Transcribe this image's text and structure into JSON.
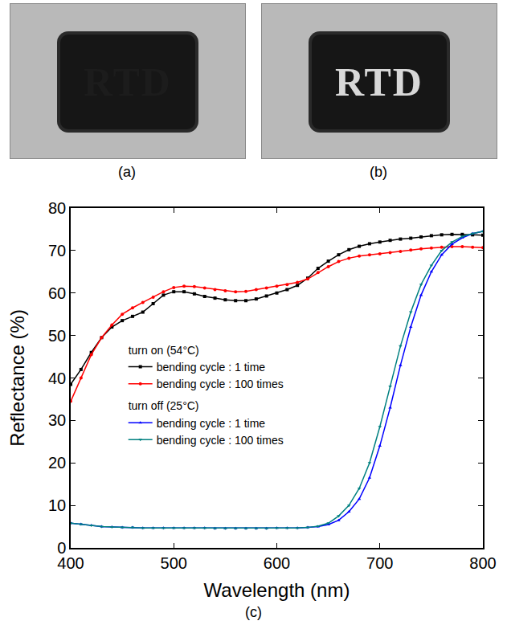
{
  "photos": [
    {
      "label": "(a)",
      "text": "RTD",
      "color": "#1c1c1c"
    },
    {
      "label": "(b)",
      "text": "RTD",
      "color": "#d8d8d8"
    }
  ],
  "chart_label": "(c)",
  "chart_data": {
    "type": "line",
    "x_title": "Wavelength (nm)",
    "y_title": "Reflectance (%)",
    "x": [
      400,
      410,
      420,
      430,
      440,
      450,
      460,
      470,
      480,
      490,
      500,
      510,
      520,
      530,
      540,
      550,
      560,
      570,
      580,
      590,
      600,
      610,
      620,
      630,
      640,
      650,
      660,
      670,
      680,
      690,
      700,
      710,
      720,
      730,
      740,
      750,
      760,
      770,
      780,
      790,
      800
    ],
    "xlim": [
      400,
      800
    ],
    "xticks": [
      400,
      500,
      600,
      700,
      800
    ],
    "ylim": [
      0,
      80
    ],
    "yticks": [
      0,
      10,
      20,
      30,
      40,
      50,
      60,
      70,
      80
    ],
    "grid": false,
    "legend": "left",
    "series": [
      {
        "group": "turn on (54°C)",
        "name": "bending cycle : 1 time",
        "color": "#000000",
        "marker": "square",
        "values": [
          38.5,
          42,
          46,
          49.5,
          52,
          53.5,
          54.5,
          55.5,
          57.5,
          59.5,
          60.3,
          60.3,
          59.8,
          59.2,
          58.8,
          58.4,
          58.2,
          58.2,
          58.6,
          59.3,
          60,
          60.8,
          61.8,
          63.5,
          65.8,
          67.5,
          69,
          70.2,
          71,
          71.6,
          72,
          72.4,
          72.7,
          72.9,
          73.2,
          73.5,
          73.7,
          73.8,
          73.8,
          73.7,
          73.6
        ]
      },
      {
        "group": "turn on (54°C)",
        "name": "bending cycle : 100 times",
        "color": "#ff0000",
        "marker": "circle",
        "values": [
          34.5,
          40,
          45.5,
          49.5,
          52.5,
          55,
          56.5,
          57.8,
          59,
          60.3,
          61.3,
          61.6,
          61.5,
          61.2,
          60.8,
          60.5,
          60.3,
          60.4,
          60.8,
          61.2,
          61.6,
          62,
          62.5,
          63.3,
          64.8,
          66.2,
          67.4,
          68.2,
          68.7,
          69,
          69.2,
          69.5,
          69.8,
          70.1,
          70.4,
          70.6,
          70.8,
          70.9,
          70.9,
          70.8,
          70.7
        ]
      },
      {
        "group": "turn off (25°C)",
        "name": "bending cycle : 1 time",
        "color": "#0000ff",
        "marker": "triangle-up",
        "values": [
          5.8,
          5.6,
          5.3,
          5,
          4.9,
          4.8,
          4.8,
          4.7,
          4.7,
          4.7,
          4.7,
          4.7,
          4.7,
          4.7,
          4.6,
          4.6,
          4.6,
          4.6,
          4.6,
          4.6,
          4.7,
          4.7,
          4.7,
          4.8,
          5,
          5.5,
          6.5,
          8.5,
          11.5,
          16.5,
          24,
          33,
          43,
          52,
          59.5,
          65,
          69,
          71.5,
          73,
          74,
          74.5
        ]
      },
      {
        "group": "turn off (25°C)",
        "name": "bending cycle : 100 times",
        "color": "#008080",
        "marker": "triangle-down",
        "values": [
          5.8,
          5.6,
          5.3,
          5,
          4.9,
          4.8,
          4.8,
          4.7,
          4.7,
          4.7,
          4.7,
          4.7,
          4.7,
          4.7,
          4.6,
          4.6,
          4.6,
          4.6,
          4.6,
          4.6,
          4.7,
          4.7,
          4.7,
          4.8,
          5.1,
          5.8,
          7.5,
          10,
          14,
          20,
          28.5,
          38,
          47.5,
          55.5,
          62,
          66.5,
          70,
          72,
          73.3,
          74,
          74.5
        ]
      }
    ]
  }
}
